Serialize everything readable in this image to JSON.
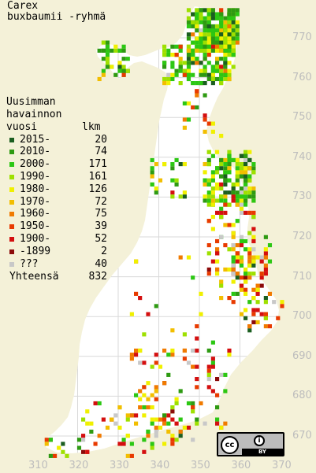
{
  "title": {
    "line1": "Carex",
    "line2": "buxbaumii -ryhmä"
  },
  "legend": {
    "heading": [
      "Uusimman",
      "havainnon"
    ],
    "col_year": "vuosi",
    "col_count": "lkm",
    "rows": [
      {
        "label": "2015-",
        "count": "20",
        "color": "#1b5e20"
      },
      {
        "label": "2010-",
        "count": "74",
        "color": "#2e9a12"
      },
      {
        "label": "2000-",
        "count": "171",
        "color": "#2cc713"
      },
      {
        "label": "1990-",
        "count": "161",
        "color": "#9ee000"
      },
      {
        "label": "1980-",
        "count": "126",
        "color": "#f0f000"
      },
      {
        "label": "1970-",
        "count": "72",
        "color": "#f2be00"
      },
      {
        "label": "1960-",
        "count": "75",
        "color": "#f07a00"
      },
      {
        "label": "1950-",
        "count": "39",
        "color": "#e83a00"
      },
      {
        "label": "1900-",
        "count": "52",
        "color": "#d40f0f"
      },
      {
        "label": "-1899",
        "count": "2",
        "color": "#8c0a0a"
      },
      {
        "label": "???",
        "count": "40",
        "color": "#c8c8c8"
      }
    ],
    "total_label": "Yhteensä",
    "total_count": "832"
  },
  "y_axis": [
    "770",
    "760",
    "750",
    "740",
    "730",
    "720",
    "710",
    "700",
    "690",
    "680",
    "670"
  ],
  "x_axis": [
    "310",
    "320",
    "330",
    "340",
    "350",
    "360",
    "370"
  ],
  "license": {
    "cc": "cc",
    "by": "BY",
    "person": "i"
  },
  "colors": {
    "background": "#f4f1d8",
    "land": "#ffffff",
    "grid": "#d9d9d9",
    "coord_label": "#bdbdbd"
  }
}
